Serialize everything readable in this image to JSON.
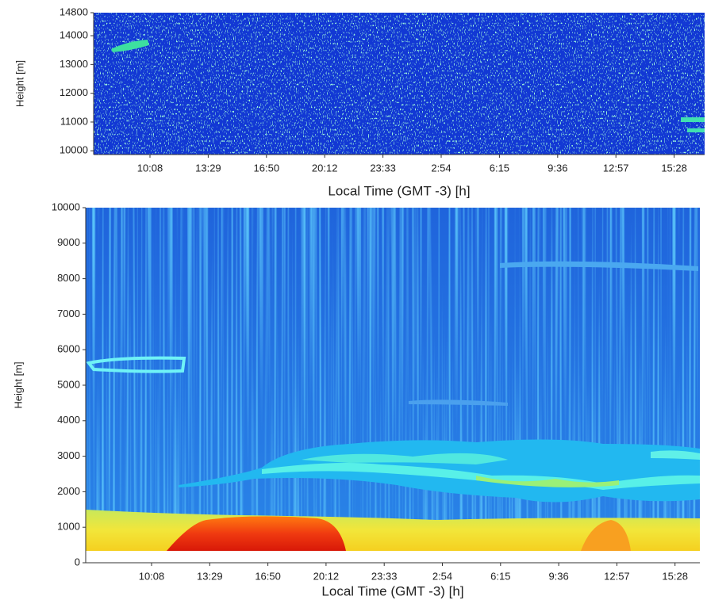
{
  "chart_data": [
    {
      "type": "heatmap",
      "x_label": "Local Time (GMT -3) [h]",
      "y_label": "Height [m]",
      "xticks": [
        "10:08",
        "13:29",
        "16:50",
        "20:12",
        "23:33",
        "2:54",
        "6:15",
        "9:36",
        "12:57",
        "15:28"
      ],
      "ylim": [
        9870,
        14800
      ],
      "yticks": [
        10000,
        11000,
        12000,
        13000,
        14000,
        14800
      ]
    },
    {
      "type": "heatmap",
      "x_label": "Local Time (GMT -3) [h]",
      "y_label": "Height [m]",
      "xticks": [
        "10:08",
        "13:29",
        "16:50",
        "20:12",
        "23:33",
        "2:54",
        "6:15",
        "9:36",
        "12:57",
        "15:28"
      ],
      "ylim": [
        0,
        10000
      ],
      "yticks": [
        0,
        1000,
        2000,
        3000,
        4000,
        5000,
        6000,
        7000,
        8000,
        9000,
        10000
      ]
    }
  ]
}
